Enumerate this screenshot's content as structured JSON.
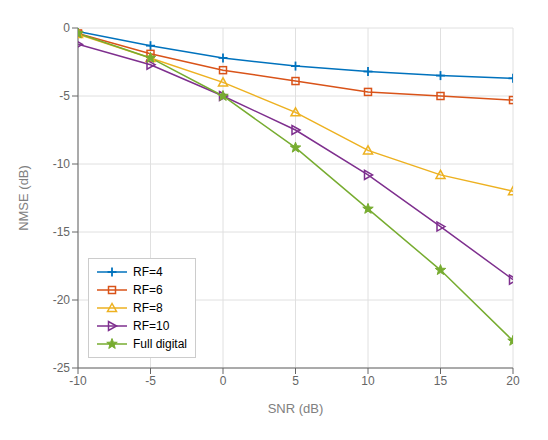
{
  "chart_data": {
    "type": "line",
    "x": [
      -10,
      -5,
      0,
      5,
      10,
      15,
      20
    ],
    "series": [
      {
        "name": "RF=4",
        "color": "#0072BD",
        "marker": "plus",
        "values": [
          -0.25,
          -1.3,
          -2.2,
          -2.8,
          -3.2,
          -3.5,
          -3.7
        ]
      },
      {
        "name": "RF=6",
        "color": "#D95319",
        "marker": "square",
        "values": [
          -0.4,
          -1.9,
          -3.1,
          -3.9,
          -4.7,
          -5.0,
          -5.3
        ]
      },
      {
        "name": "RF=8",
        "color": "#EDB120",
        "marker": "triangle-up",
        "values": [
          -0.45,
          -2.2,
          -4.0,
          -6.2,
          -9.0,
          -10.8,
          -12.0
        ]
      },
      {
        "name": "RF=10",
        "color": "#7E2F8E",
        "marker": "triangle-right",
        "values": [
          -1.2,
          -2.7,
          -5.0,
          -7.5,
          -10.8,
          -14.6,
          -18.5
        ]
      },
      {
        "name": "Full digital",
        "color": "#77AC30",
        "marker": "star",
        "values": [
          -0.4,
          -2.2,
          -5.0,
          -8.8,
          -13.3,
          -17.8,
          -23.0
        ]
      }
    ],
    "xlabel": "SNR (dB)",
    "ylabel": "NMSE (dB)",
    "xlim": [
      -10,
      20
    ],
    "ylim": [
      -25,
      0
    ],
    "xticks": [
      -10,
      -5,
      0,
      5,
      10,
      15,
      20
    ],
    "yticks": [
      0,
      -5,
      -10,
      -15,
      -20,
      -25
    ],
    "grid": true,
    "legend": "lower left"
  }
}
